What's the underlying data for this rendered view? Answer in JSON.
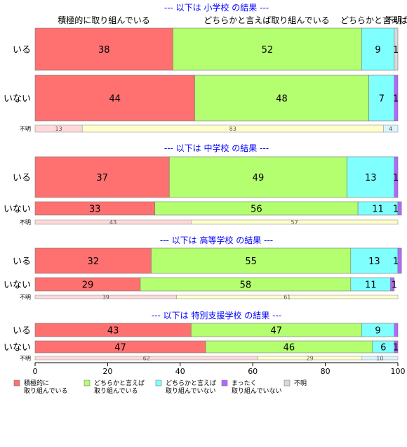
{
  "chart_data": {
    "type": "bar",
    "orientation": "horizontal",
    "stacked": true,
    "xlim": [
      0,
      100
    ],
    "x_ticks": [
      0,
      20,
      40,
      60,
      80,
      100
    ],
    "category_labels": [
      "積極的に取り組んでいる",
      "どちらかと言えば取り組んでいる",
      "どちらかと言えば",
      "不明"
    ],
    "legend": [
      {
        "name": "積極的に\n取り組んでいる",
        "color": "#ff7070"
      },
      {
        "name": "どちらかと言えば\n取り組んでいる",
        "color": "#b3ff70"
      },
      {
        "name": "どちらかと言えば\n取り組んでいない",
        "color": "#80ffff"
      },
      {
        "name": "まったく\n取り組んでいない",
        "color": "#b266ff"
      },
      {
        "name": "不明",
        "color": "#d9d9d9"
      }
    ],
    "legend_position": "bottom",
    "grid": false,
    "unknown_row_colors": [
      "#ffd9d9",
      "#ffffcc",
      "#d9f5ff"
    ],
    "panels": [
      {
        "title": "--- 以下は 小学校 の結果 ---",
        "rows": [
          {
            "label": "いる",
            "values": [
              38,
              52,
              9,
              0,
              1
            ],
            "labels": [
              "38",
              "52",
              "9",
              "",
              "1"
            ]
          },
          {
            "label": "いない",
            "values": [
              44,
              48,
              7,
              1,
              0
            ],
            "labels": [
              "44",
              "48",
              "7",
              "1",
              ""
            ]
          }
        ],
        "unknown": {
          "label": "不明",
          "values": [
            13,
            83,
            4
          ]
        }
      },
      {
        "title": "--- 以下は 中学校 の結果 ---",
        "rows": [
          {
            "label": "いる",
            "values": [
              37,
              49,
              13,
              1,
              0
            ],
            "labels": [
              "37",
              "49",
              "13",
              "1",
              ""
            ]
          },
          {
            "label": "いない",
            "values": [
              33,
              56,
              11,
              1,
              0
            ],
            "labels": [
              "33",
              "56",
              "11",
              "1",
              ""
            ]
          }
        ],
        "unknown": {
          "label": "不明",
          "values": [
            43,
            57
          ]
        }
      },
      {
        "title": "--- 以下は 高等学校 の結果 ---",
        "rows": [
          {
            "label": "いる",
            "values": [
              32,
              55,
              13,
              1,
              0
            ],
            "labels": [
              "32",
              "55",
              "13",
              "1",
              ""
            ]
          },
          {
            "label": "いない",
            "values": [
              29,
              58,
              11,
              1,
              0
            ],
            "labels": [
              "29",
              "58",
              "11",
              "1",
              ""
            ]
          }
        ],
        "unknown": {
          "label": "不明",
          "values": [
            39,
            61
          ]
        }
      },
      {
        "title": "--- 以下は 特別支援学校 の結果 ---",
        "rows": [
          {
            "label": "いる",
            "values": [
              43,
              47,
              9,
              1,
              0
            ],
            "labels": [
              "43",
              "47",
              "9",
              "",
              ""
            ]
          },
          {
            "label": "いない",
            "values": [
              47,
              46,
              6,
              1,
              0
            ],
            "labels": [
              "47",
              "46",
              "6",
              "1",
              ""
            ]
          }
        ],
        "unknown": {
          "label": "不明",
          "values": [
            62,
            29,
            10
          ]
        }
      }
    ]
  }
}
